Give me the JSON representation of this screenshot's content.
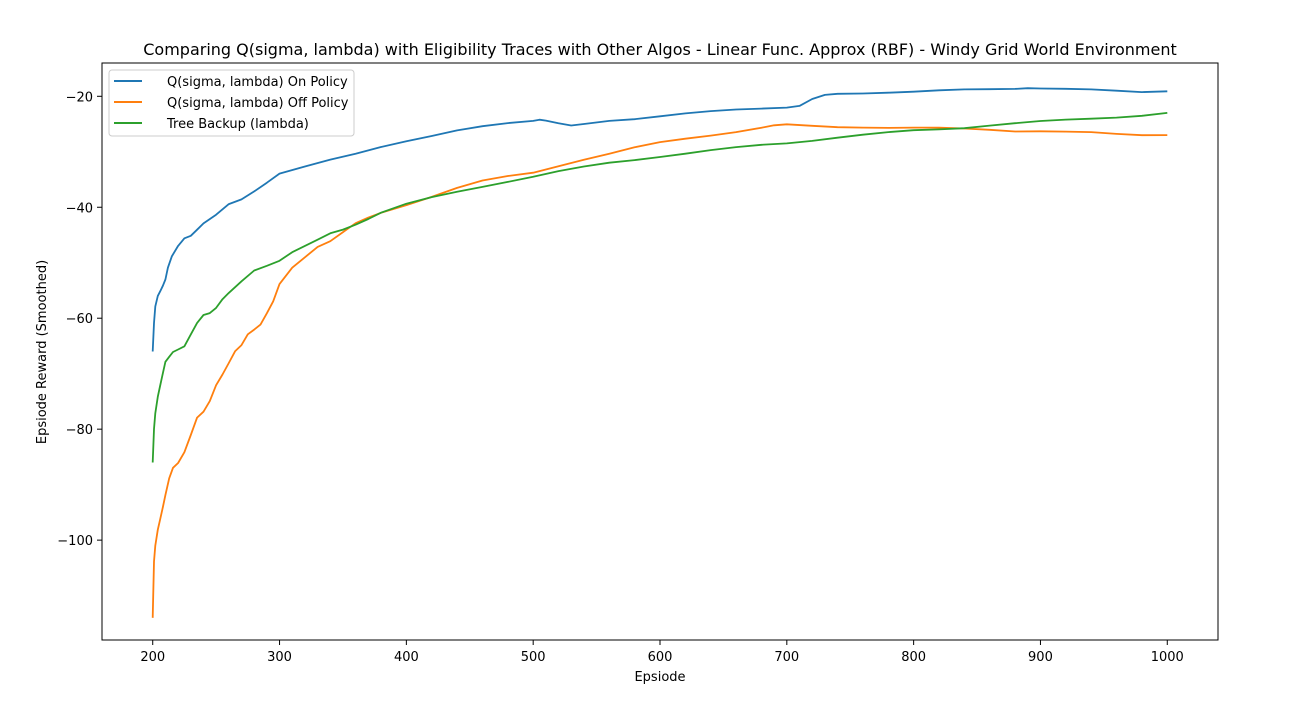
{
  "chart_data": {
    "type": "line",
    "title": "Comparing Q(sigma, lambda) with Eligibility Traces with Other Algos - Linear Func. Approx (RBF) - Windy Grid World Environment",
    "xlabel": "Epsiode",
    "ylabel": "Epsiode Reward (Smoothed)",
    "xlim": [
      160,
      1040
    ],
    "ylim": [
      -118,
      -14
    ],
    "xticks": [
      200,
      300,
      400,
      500,
      600,
      700,
      800,
      900,
      1000
    ],
    "yticks": [
      -100,
      -80,
      -60,
      -40,
      -20
    ],
    "xtick_labels": [
      "200",
      "300",
      "400",
      "500",
      "600",
      "700",
      "800",
      "900",
      "1000"
    ],
    "ytick_labels": [
      "−100",
      "−80",
      "−60",
      "−40",
      "−20"
    ],
    "grid": false,
    "legend_position": "top-left",
    "series": [
      {
        "name": "Q(sigma, lambda) On Policy",
        "color": "#1f77b4",
        "x": [
          200,
          201,
          202,
          204,
          206,
          208,
          210,
          212,
          215,
          220,
          225,
          230,
          235,
          240,
          250,
          260,
          270,
          280,
          290,
          300,
          320,
          340,
          360,
          380,
          400,
          420,
          440,
          460,
          480,
          500,
          505,
          510,
          520,
          530,
          540,
          560,
          580,
          600,
          620,
          640,
          660,
          680,
          700,
          710,
          720,
          730,
          740,
          760,
          780,
          800,
          820,
          840,
          860,
          880,
          890,
          900,
          920,
          940,
          960,
          980,
          1000
        ],
        "y": [
          -66,
          -61,
          -58,
          -56,
          -55,
          -54,
          -53,
          -51,
          -49,
          -47,
          -45.5,
          -45,
          -44,
          -43,
          -41.5,
          -39.5,
          -38.5,
          -37,
          -35.5,
          -34,
          -32.8,
          -31.5,
          -30.3,
          -29,
          -28,
          -27.2,
          -26.3,
          -25.5,
          -24.8,
          -24.3,
          -24.1,
          -24.4,
          -25,
          -25.4,
          -25,
          -24.3,
          -24,
          -23.6,
          -23.2,
          -22.8,
          -22.4,
          -22.1,
          -21.9,
          -21.7,
          -20.6,
          -19.9,
          -19.6,
          -19.4,
          -19.2,
          -19.1,
          -19,
          -18.9,
          -18.8,
          -18.6,
          -18.4,
          -18.5,
          -18.7,
          -18.9,
          -19.1,
          -19.2,
          -19.1
        ]
      },
      {
        "name": "Q(sigma, lambda) Off Policy",
        "color": "#ff7f0e",
        "x": [
          200,
          201,
          202,
          204,
          206,
          208,
          210,
          213,
          216,
          220,
          225,
          230,
          235,
          240,
          245,
          250,
          255,
          260,
          265,
          270,
          275,
          280,
          285,
          290,
          295,
          300,
          310,
          320,
          330,
          340,
          350,
          360,
          370,
          380,
          400,
          420,
          440,
          460,
          480,
          500,
          520,
          540,
          560,
          580,
          600,
          620,
          640,
          660,
          680,
          690,
          700,
          720,
          740,
          760,
          780,
          800,
          820,
          840,
          860,
          880,
          900,
          920,
          940,
          960,
          980,
          1000
        ],
        "y": [
          -114,
          -104,
          -101,
          -98,
          -96,
          -94,
          -92,
          -89,
          -87,
          -86,
          -84,
          -81,
          -78,
          -77,
          -75,
          -72,
          -70,
          -68,
          -66,
          -65,
          -63,
          -62,
          -61,
          -59,
          -57,
          -54,
          -51,
          -49,
          -47,
          -46,
          -44.5,
          -43,
          -42,
          -41,
          -39.5,
          -38,
          -36.5,
          -35.3,
          -34.5,
          -33.8,
          -32.5,
          -31.3,
          -30.3,
          -29.3,
          -28.4,
          -27.7,
          -27,
          -26.3,
          -25.6,
          -25.3,
          -25.2,
          -25.4,
          -25.5,
          -25.5,
          -25.6,
          -25.7,
          -25.8,
          -25.9,
          -26,
          -26.2,
          -26.2,
          -26.4,
          -26.6,
          -26.9,
          -27,
          -27
        ]
      },
      {
        "name": "Tree Backup (lambda)",
        "color": "#2ca02c",
        "x": [
          200,
          201,
          202,
          204,
          206,
          208,
          210,
          213,
          216,
          220,
          225,
          230,
          235,
          240,
          245,
          250,
          255,
          260,
          270,
          280,
          290,
          300,
          310,
          320,
          330,
          340,
          350,
          360,
          370,
          380,
          400,
          420,
          440,
          460,
          480,
          500,
          520,
          540,
          560,
          580,
          600,
          620,
          640,
          660,
          680,
          700,
          720,
          740,
          760,
          780,
          800,
          820,
          840,
          860,
          880,
          900,
          920,
          940,
          960,
          980,
          1000
        ],
        "y": [
          -86,
          -80,
          -77,
          -74,
          -72,
          -70,
          -68,
          -67,
          -66,
          -65.5,
          -65,
          -63,
          -61,
          -59.5,
          -59,
          -58,
          -56.5,
          -55.5,
          -53.5,
          -51.5,
          -50.5,
          -49.5,
          -48,
          -47,
          -46,
          -44.8,
          -44,
          -43,
          -42,
          -41,
          -39.5,
          -38.3,
          -37.2,
          -36.2,
          -35.3,
          -34.5,
          -33.6,
          -32.8,
          -32,
          -31.4,
          -30.8,
          -30.3,
          -29.8,
          -29.3,
          -28.8,
          -28.4,
          -27.9,
          -27.4,
          -27,
          -26.6,
          -26.2,
          -25.9,
          -25.6,
          -25.2,
          -24.9,
          -24.6,
          -24.3,
          -24,
          -23.7,
          -23.4,
          -23
        ]
      }
    ]
  }
}
